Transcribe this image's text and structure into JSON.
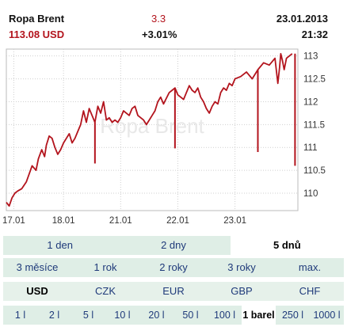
{
  "header": {
    "name": "Ropa Brent",
    "price": "113.08 USD",
    "change": "3.3",
    "change_pct": "+3.01%",
    "date": "23.01.2013",
    "time": "21:32"
  },
  "colors": {
    "line": "#b3141d",
    "grid": "#cfcfcf",
    "tab_bg": "#dfeee6",
    "tab_text": "#1f3a7a"
  },
  "chart_data": {
    "type": "line",
    "title": "",
    "xlabel": "",
    "ylabel": "",
    "watermark": "Ropa Brent",
    "x_ticks": [
      "17.01",
      "18.01",
      "21.01",
      "22.01",
      "23.01"
    ],
    "x_range": [
      0,
      5.1
    ],
    "y_ticks": [
      110,
      110.5,
      111,
      111.5,
      112,
      112.5,
      113
    ],
    "ylim": [
      109.62,
      113.15
    ],
    "grid": true,
    "series": [
      {
        "x": [
          0.0,
          0.05,
          0.1,
          0.15,
          0.2,
          0.27,
          0.35,
          0.45,
          0.52,
          0.56,
          0.62,
          0.67,
          0.7,
          0.75,
          0.8,
          0.85,
          0.9,
          0.95,
          1.0,
          1.05,
          1.1,
          1.15,
          1.2,
          1.25,
          1.3,
          1.35,
          1.4,
          1.45,
          1.5,
          1.55,
          1.6,
          1.65,
          1.7,
          1.75,
          1.8,
          1.85,
          1.9,
          1.95,
          2.0,
          2.05,
          2.1,
          2.15,
          2.2,
          2.25,
          2.3,
          2.35,
          2.4,
          2.45,
          2.5,
          2.55,
          2.6,
          2.65,
          2.7,
          2.75,
          2.85,
          2.9,
          2.95,
          3.0,
          3.05,
          3.1,
          3.2,
          3.25,
          3.3,
          3.35,
          3.4,
          3.45,
          3.5,
          3.55,
          3.6,
          3.65,
          3.7,
          3.75,
          3.8,
          3.85,
          3.9,
          3.95,
          4.0,
          4.1,
          4.2,
          4.3,
          4.4,
          4.5,
          4.6,
          4.7,
          4.75,
          4.78,
          4.8,
          4.83,
          4.86,
          4.9,
          4.95,
          5.0
        ],
        "y": [
          109.8,
          109.72,
          109.9,
          110.0,
          110.05,
          110.1,
          110.25,
          110.6,
          110.5,
          110.75,
          110.95,
          110.8,
          111.05,
          111.25,
          111.2,
          111.0,
          110.85,
          110.95,
          111.1,
          111.2,
          111.3,
          111.1,
          111.2,
          111.35,
          111.5,
          111.8,
          111.55,
          111.85,
          111.7,
          111.55,
          111.9,
          111.75,
          112.0,
          111.6,
          111.65,
          111.55,
          111.6,
          111.55,
          111.65,
          111.8,
          111.75,
          111.7,
          111.85,
          111.9,
          111.7,
          111.65,
          111.6,
          111.5,
          111.6,
          111.7,
          111.8,
          112.0,
          112.1,
          111.95,
          112.2,
          112.25,
          112.3,
          112.15,
          112.1,
          112.05,
          112.35,
          112.25,
          112.2,
          112.3,
          112.1,
          112.0,
          111.85,
          111.75,
          111.9,
          112.0,
          111.95,
          112.2,
          112.3,
          112.25,
          112.4,
          112.35,
          112.5,
          112.55,
          112.65,
          112.5,
          112.7,
          112.85,
          112.8,
          112.95,
          112.4,
          112.75,
          113.05,
          112.9,
          112.7,
          112.95,
          113.0,
          113.05
        ]
      }
    ],
    "spikes": [
      {
        "x": 1.55,
        "low": 110.65
      },
      {
        "x": 2.95,
        "low": 110.98
      },
      {
        "x": 4.4,
        "low": 110.9
      },
      {
        "x": 5.05,
        "low": 110.6
      }
    ]
  },
  "periods": [
    {
      "label": "1 den",
      "active": false
    },
    {
      "label": "2 dny",
      "active": false
    },
    {
      "label": "5 dnů",
      "active": true
    }
  ],
  "ranges": [
    "3 měsíce",
    "1 rok",
    "2 roky",
    "3 roky",
    "max."
  ],
  "currencies": [
    {
      "label": "USD",
      "active": true
    },
    {
      "label": "CZK",
      "active": false
    },
    {
      "label": "EUR",
      "active": false
    },
    {
      "label": "GBP",
      "active": false
    },
    {
      "label": "CHF",
      "active": false
    }
  ],
  "units": [
    {
      "label": "1 l",
      "active": false
    },
    {
      "label": "2 l",
      "active": false
    },
    {
      "label": "5 l",
      "active": false
    },
    {
      "label": "10 l",
      "active": false
    },
    {
      "label": "20 l",
      "active": false
    },
    {
      "label": "50 l",
      "active": false
    },
    {
      "label": "100 l",
      "active": false
    },
    {
      "label": "1 barel",
      "active": true
    },
    {
      "label": "250 l",
      "active": false
    },
    {
      "label": "1000 l",
      "active": false
    }
  ]
}
